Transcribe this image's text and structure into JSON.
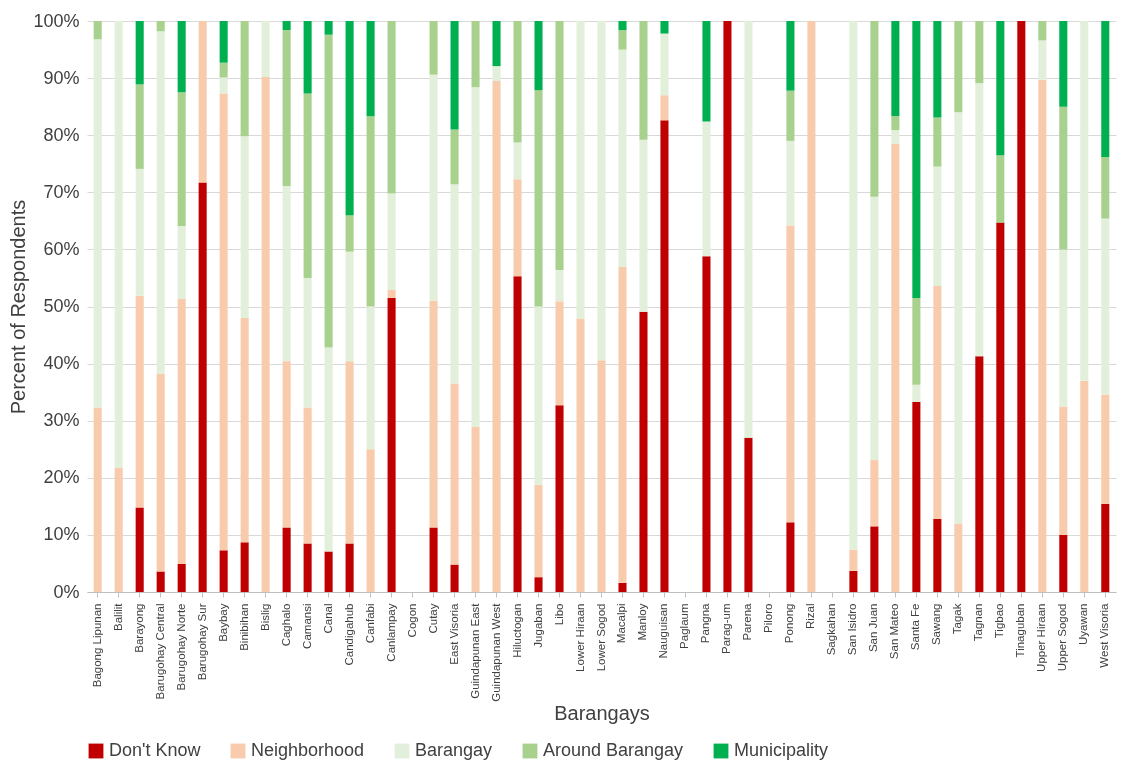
{
  "chart_data": {
    "type": "bar",
    "stacked": true,
    "xlabel": "Barangays",
    "ylabel": "Percent of Respondents",
    "categories": [
      "Bagong Lipunan",
      "Balilit",
      "Barayong",
      "Barugohay Central",
      "Barugohay Norte",
      "Barugohay Sur",
      "Baybay",
      "Binibihan",
      "Bislig",
      "Caghalo",
      "Camansi",
      "Canal",
      "Candigahub",
      "Canfabi",
      "Canlampay",
      "Cogon",
      "Cutay",
      "East Visoria",
      "Guindapunan East",
      "Guindapunan West",
      "Hiluctogan",
      "Jugaban",
      "Libo",
      "Lower Hiraan",
      "Lower Sogod",
      "Macalpi",
      "Manloy",
      "Nauguisan",
      "Paglaum",
      "Pangna",
      "Parag-um",
      "Parena",
      "Piloro",
      "Ponong",
      "Rizal",
      "Sagkahan",
      "San Isidro",
      "San Juan",
      "San Mateo",
      "Santa Fe",
      "Sawang",
      "Tagak",
      "Tagnan",
      "Tigbao",
      "Tinaguban",
      "Upper Hiraan",
      "Upper Sogod",
      "Uyawan",
      "West Visoria"
    ],
    "series": [
      {
        "name": "Don't Know",
        "color": "#c00000",
        "values": [
          0,
          0,
          14.8,
          3.6,
          4.9,
          71.7,
          7.3,
          8.7,
          0,
          11.3,
          8.5,
          7.1,
          8.5,
          0,
          51.5,
          0,
          11.3,
          4.8,
          0,
          0,
          55.3,
          2.6,
          32.7,
          0,
          0,
          1.6,
          49.1,
          82.6,
          0,
          58.8,
          100,
          27,
          0,
          12.2,
          0,
          0,
          3.7,
          11.5,
          0,
          33.3,
          12.8,
          0,
          41.3,
          64.7,
          100,
          0,
          10,
          0,
          15.4
        ]
      },
      {
        "name": "Neighborhood",
        "color": "#f8cbad",
        "values": [
          32.3,
          21.7,
          37.1,
          34.6,
          46.4,
          28.3,
          80,
          39.3,
          90.2,
          29.1,
          23.8,
          0,
          31.9,
          25,
          1.4,
          0,
          39.7,
          31.7,
          28.9,
          89.5,
          17,
          16.2,
          18.2,
          47.9,
          40.6,
          55.3,
          0,
          4.4,
          0,
          0,
          0,
          0,
          0,
          52,
          100,
          0,
          3.7,
          11.6,
          78.5,
          0,
          40.8,
          12,
          0,
          0,
          0,
          89.7,
          22.5,
          37,
          19.2
        ]
      },
      {
        "name": "Barangay",
        "color": "#e2efda",
        "values": [
          64.5,
          78.3,
          22.2,
          60,
          12.8,
          0,
          2.8,
          31.8,
          9.8,
          30.7,
          22.7,
          35.7,
          19.2,
          25,
          16.9,
          0,
          39.6,
          34.9,
          59.5,
          2.6,
          6.4,
          31.2,
          5.5,
          52.1,
          59.4,
          38.1,
          30.1,
          10.8,
          0,
          23.6,
          0,
          73,
          0,
          14.8,
          0,
          0,
          92.6,
          46.1,
          2.4,
          3,
          20.9,
          72,
          47.8,
          0,
          0,
          6.9,
          27.5,
          63,
          30.8
        ]
      },
      {
        "name": "Around Barangay",
        "color": "#a9d18e",
        "values": [
          3.2,
          0,
          14.8,
          1.8,
          23.4,
          0,
          2.6,
          20.2,
          0,
          27.3,
          32.3,
          54.8,
          6.4,
          33.3,
          30.2,
          0,
          9.4,
          9.6,
          11.6,
          0,
          21.3,
          37.9,
          43.6,
          0,
          0,
          3.4,
          20.8,
          0,
          0,
          0,
          0,
          0,
          0,
          8.8,
          0,
          0,
          0,
          30.8,
          2.4,
          15.2,
          8.6,
          16,
          10.9,
          11.8,
          0,
          3.4,
          25,
          0,
          10.8
        ]
      },
      {
        "name": "Municipality",
        "color": "#00b050",
        "values": [
          0,
          0,
          11.1,
          0,
          12.5,
          0,
          7.3,
          0,
          0,
          1.6,
          12.7,
          2.4,
          34,
          16.7,
          0,
          0,
          0,
          19,
          0,
          7.9,
          0,
          12.1,
          0,
          0,
          0,
          1.6,
          0,
          2.2,
          0,
          17.6,
          0,
          0,
          0,
          12.2,
          0,
          0,
          0,
          0,
          16.7,
          48.5,
          16.9,
          0,
          0,
          23.5,
          0,
          0,
          15,
          0,
          23.8
        ]
      }
    ],
    "ylim": [
      0,
      100
    ],
    "yticks": [
      {
        "value": 0,
        "label": "0%"
      },
      {
        "value": 10,
        "label": "10%"
      },
      {
        "value": 20,
        "label": "20%"
      },
      {
        "value": 30,
        "label": "30%"
      },
      {
        "value": 40,
        "label": "40%"
      },
      {
        "value": 50,
        "label": "50%"
      },
      {
        "value": 60,
        "label": "60%"
      },
      {
        "value": 70,
        "label": "70%"
      },
      {
        "value": 80,
        "label": "80%"
      },
      {
        "value": 90,
        "label": "90%"
      },
      {
        "value": 100,
        "label": "100%"
      }
    ],
    "grid": "y",
    "legend": "bottom"
  }
}
